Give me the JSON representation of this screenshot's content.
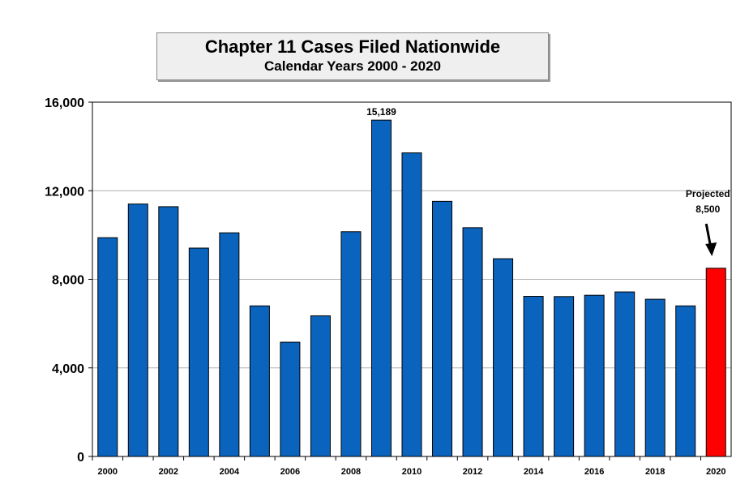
{
  "chart_data": {
    "type": "bar",
    "title": "Chapter 11 Cases Filed Nationwide",
    "subtitle": "Calendar Years  2000 - 2020",
    "xlabel": "",
    "ylabel": "",
    "ylim": [
      0,
      16000
    ],
    "yticks": [
      "0",
      "4,000",
      "8,000",
      "12,000",
      "16,000"
    ],
    "ytick_values": [
      0,
      4000,
      8000,
      12000,
      16000
    ],
    "grid": true,
    "categories": [
      "2000",
      "2001",
      "2002",
      "2003",
      "2004",
      "2005",
      "2006",
      "2007",
      "2008",
      "2009",
      "2010",
      "2011",
      "2012",
      "2013",
      "2014",
      "2015",
      "2016",
      "2017",
      "2018",
      "2019",
      "2020"
    ],
    "x_tick_labels": [
      "2000",
      "",
      "2002",
      "",
      "2004",
      "",
      "2006",
      "",
      "2008",
      "",
      "2010",
      "",
      "2012",
      "",
      "2014",
      "",
      "2016",
      "",
      "2018",
      "",
      "2020"
    ],
    "values": [
      9880,
      11400,
      11280,
      9410,
      10100,
      6800,
      5160,
      6350,
      10150,
      15189,
      13710,
      11520,
      10330,
      8930,
      7230,
      7220,
      7280,
      7430,
      7100,
      6800,
      8500
    ],
    "colors": {
      "bar": "#0a64be",
      "bar_highlight": "#ff0000",
      "bar_outline": "#000000",
      "grid": "#b0b0b0"
    },
    "highlight_index": 20,
    "annotations": {
      "peak_label": "15,189",
      "peak_index": 9,
      "projected_label_line1": "Projected",
      "projected_label_line2": "8,500",
      "projected_index": 20
    }
  }
}
